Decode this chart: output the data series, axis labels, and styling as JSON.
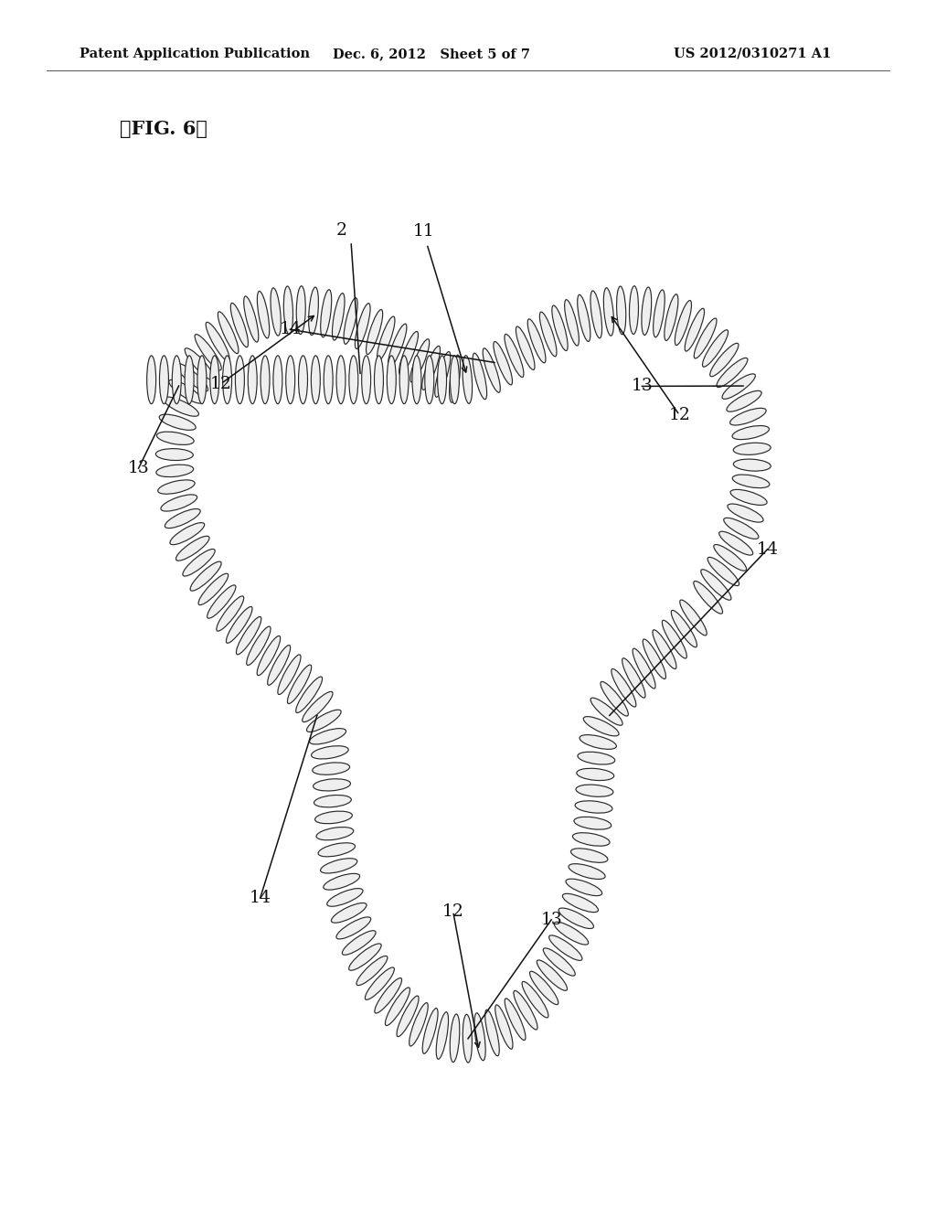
{
  "background_color": "#ffffff",
  "header_left": "Patent Application Publication",
  "header_mid": "Dec. 6, 2012   Sheet 5 of 7",
  "header_right": "US 2012/0310271 A1",
  "fig_label": "【FIG. 6】",
  "coil_color": "#2a2a2a",
  "coil_fill": "#efefef",
  "label_color": "#111111"
}
